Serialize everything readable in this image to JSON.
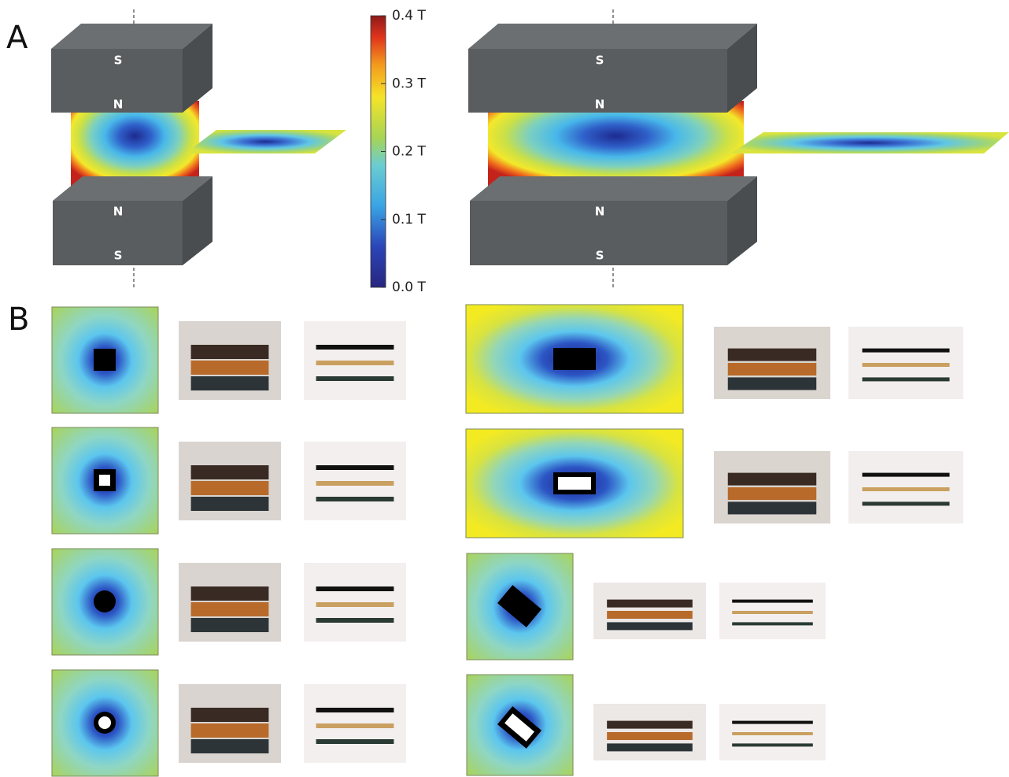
{
  "panels": {
    "a": {
      "label": "A",
      "setups": [
        {
          "top_magnet": [
            "S",
            "N"
          ],
          "bottom_magnet": [
            "N",
            "S"
          ]
        },
        {
          "top_magnet": [
            "S",
            "N"
          ],
          "bottom_magnet": [
            "N",
            "S"
          ]
        }
      ]
    },
    "b": {
      "label": "B"
    }
  },
  "colorbar": {
    "lim": [
      0,
      0.4
    ],
    "ticks": [
      {
        "value": 0.4,
        "label": "0.4 T"
      },
      {
        "value": 0.3,
        "label": "0.3 T"
      },
      {
        "value": 0.2,
        "label": "0.2 T"
      },
      {
        "value": 0.1,
        "label": "0.1 T"
      },
      {
        "value": 0,
        "label": "0.0 T"
      }
    ]
  }
}
